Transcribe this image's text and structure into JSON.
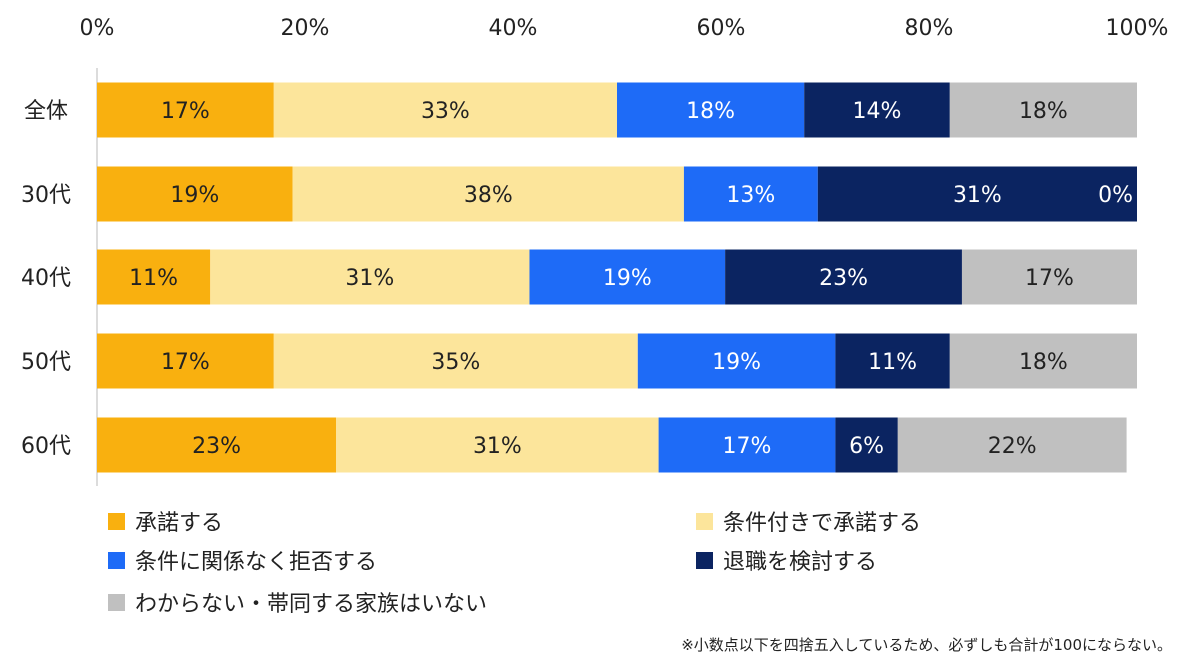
{
  "chart_data": {
    "type": "bar",
    "orientation": "horizontal",
    "stacked": true,
    "title": "",
    "xlabel": "",
    "ylabel": "",
    "xlim": [
      0,
      100
    ],
    "x_ticks": [
      "0%",
      "20%",
      "40%",
      "60%",
      "80%",
      "100%"
    ],
    "x_tick_values": [
      0,
      20,
      40,
      60,
      80,
      100
    ],
    "x_axis_position": "top",
    "grid": false,
    "legend_position": "bottom",
    "categories": [
      "全体",
      "30代",
      "40代",
      "50代",
      "60代"
    ],
    "series": [
      {
        "name": "承諾する",
        "color": "#F9B00F",
        "label_color": "#222222",
        "values": [
          17,
          19,
          11,
          17,
          23
        ]
      },
      {
        "name": "条件付きで承諾する",
        "color": "#FCE59B",
        "label_color": "#222222",
        "values": [
          33,
          38,
          31,
          35,
          31
        ]
      },
      {
        "name": "条件に関係なく拒否する",
        "color": "#1E6BF7",
        "label_color": "#ffffff",
        "values": [
          18,
          13,
          19,
          19,
          17
        ]
      },
      {
        "name": "退職を検討する",
        "color": "#0B2461",
        "label_color": "#ffffff",
        "values": [
          14,
          31,
          23,
          11,
          6
        ]
      },
      {
        "name": "わからない・帯同する家族はいない",
        "color": "#C0C0C0",
        "label_color": "#222222",
        "values": [
          18,
          0,
          17,
          18,
          22
        ]
      }
    ],
    "data_labels": [
      [
        "17%",
        "33%",
        "18%",
        "14%",
        "18%"
      ],
      [
        "19%",
        "38%",
        "13%",
        "31%",
        "0%"
      ],
      [
        "11%",
        "31%",
        "19%",
        "23%",
        "17%"
      ],
      [
        "17%",
        "35%",
        "19%",
        "11%",
        "18%"
      ],
      [
        "23%",
        "31%",
        "17%",
        "6%",
        "22%"
      ]
    ],
    "footnote": "※小数点以下を四捨五入しているため、必ずしも合計が100にならない。"
  }
}
